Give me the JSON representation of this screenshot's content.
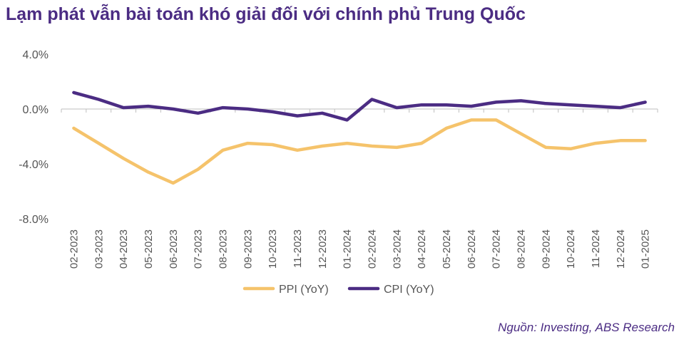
{
  "title": "Lạm phát vẫn bài toán khó giải đối với chính phủ Trung Quốc",
  "source": "Nguồn: Investing, ABS Research",
  "chart_data": {
    "type": "line",
    "x": [
      "02-2023",
      "03-2023",
      "04-2023",
      "05-2023",
      "06-2023",
      "07-2023",
      "08-2023",
      "09-2023",
      "10-2023",
      "11-2023",
      "12-2023",
      "01-2024",
      "02-2024",
      "03-2024",
      "04-2024",
      "05-2024",
      "06-2024",
      "07-2024",
      "08-2024",
      "09-2024",
      "10-2024",
      "11-2024",
      "12-2024",
      "01-2025"
    ],
    "series": [
      {
        "name": "PPI (YoY)",
        "color": "#f5c36b",
        "values": [
          -1.4,
          -2.5,
          -3.6,
          -4.6,
          -5.4,
          -4.4,
          -3.0,
          -2.5,
          -2.6,
          -3.0,
          -2.7,
          -2.5,
          -2.7,
          -2.8,
          -2.5,
          -1.4,
          -0.8,
          -0.8,
          -1.8,
          -2.8,
          -2.9,
          -2.5,
          -2.3,
          -2.3
        ]
      },
      {
        "name": "CPI (YoY)",
        "color": "#4b2c83",
        "values": [
          1.2,
          0.7,
          0.1,
          0.2,
          0.0,
          -0.3,
          0.1,
          0.0,
          -0.2,
          -0.5,
          -0.3,
          -0.8,
          0.7,
          0.1,
          0.3,
          0.3,
          0.2,
          0.5,
          0.6,
          0.4,
          0.3,
          0.2,
          0.1,
          0.5
        ]
      }
    ],
    "yticks": [
      "4.0%",
      "0.0%",
      "-4.0%",
      "-8.0%"
    ],
    "ytick_values": [
      4,
      0,
      -4,
      -8
    ],
    "ylim": [
      -8,
      4
    ],
    "grid": false,
    "legend_position": "bottom"
  }
}
